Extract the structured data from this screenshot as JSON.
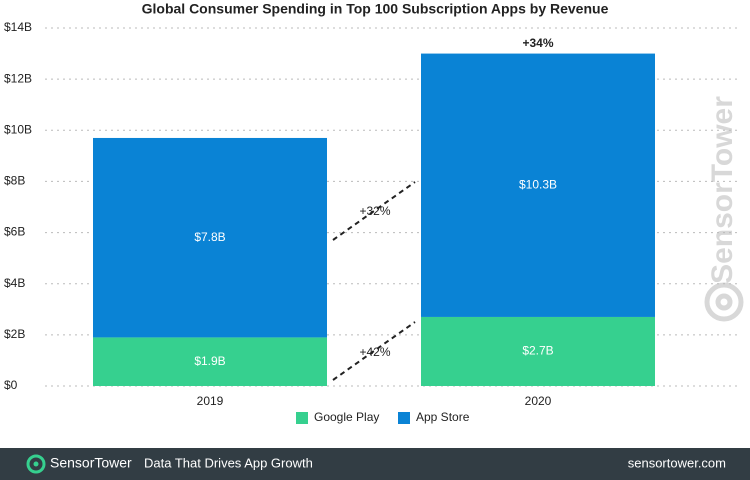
{
  "chart_data": {
    "type": "stacked_bar",
    "title": "Global Consumer Spending in Top 100 Subscription Apps by Revenue",
    "categories": [
      "2019",
      "2020"
    ],
    "series": [
      {
        "name": "Google Play",
        "color": "#36d08f",
        "values": [
          1.9,
          2.7
        ],
        "value_labels": [
          "$1.9B",
          "$2.7B"
        ]
      },
      {
        "name": "App Store",
        "color": "#0a83d5",
        "values": [
          7.8,
          10.3
        ],
        "value_labels": [
          "$7.8B",
          "$10.3B"
        ]
      }
    ],
    "ylim": [
      0,
      14
    ],
    "yticks": [
      {
        "value": 0,
        "label": "$0"
      },
      {
        "value": 2,
        "label": "$2B"
      },
      {
        "value": 4,
        "label": "$4B"
      },
      {
        "value": 6,
        "label": "$6B"
      },
      {
        "value": 8,
        "label": "$8B"
      },
      {
        "value": 10,
        "label": "$10B"
      },
      {
        "value": 12,
        "label": "$12B"
      },
      {
        "value": 14,
        "label": "$14B"
      }
    ],
    "grid": true,
    "annotations": [
      "+34%",
      "+32%",
      "+42%"
    ]
  },
  "watermark": "SensorTower",
  "footer": {
    "brand": "SensorTower",
    "tagline": "Data That Drives App Growth",
    "url": "sensortower.com"
  }
}
